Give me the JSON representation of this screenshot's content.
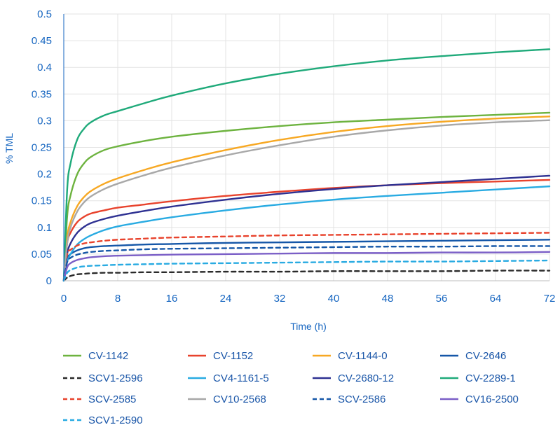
{
  "chart_data": {
    "type": "line",
    "title": "",
    "xlabel": "Time (h)",
    "ylabel": "% TML",
    "xlim": [
      0,
      72
    ],
    "ylim": [
      0,
      0.5
    ],
    "x_ticks": [
      "0",
      "8",
      "16",
      "24",
      "32",
      "40",
      "48",
      "56",
      "64",
      "72"
    ],
    "y_ticks": [
      "0",
      "0.05",
      "0.1",
      "0.15",
      "0.2",
      "0.25",
      "0.3",
      "0.35",
      "0.4",
      "0.45",
      "0.5"
    ],
    "grid": true,
    "legend_position": "bottom",
    "x": [
      0,
      0.5,
      1,
      2,
      3,
      4,
      6,
      8,
      12,
      16,
      24,
      32,
      40,
      48,
      56,
      64,
      72
    ],
    "series": [
      {
        "name": "CV-1142",
        "color": "#6db33f",
        "dash": false,
        "values": [
          0,
          0.12,
          0.16,
          0.2,
          0.22,
          0.232,
          0.245,
          0.252,
          0.262,
          0.27,
          0.281,
          0.29,
          0.297,
          0.302,
          0.307,
          0.311,
          0.315
        ]
      },
      {
        "name": "CV-1152",
        "color": "#e8432d",
        "dash": false,
        "values": [
          0,
          0.07,
          0.09,
          0.11,
          0.12,
          0.126,
          0.132,
          0.137,
          0.143,
          0.149,
          0.159,
          0.167,
          0.174,
          0.179,
          0.183,
          0.186,
          0.189
        ]
      },
      {
        "name": "CV-1144-0",
        "color": "#f7a823",
        "dash": false,
        "values": [
          0,
          0.08,
          0.11,
          0.14,
          0.157,
          0.168,
          0.182,
          0.192,
          0.208,
          0.222,
          0.245,
          0.264,
          0.279,
          0.29,
          0.298,
          0.304,
          0.308
        ]
      },
      {
        "name": "CV-2646",
        "color": "#1557a8",
        "dash": false,
        "values": [
          0,
          0.04,
          0.05,
          0.057,
          0.061,
          0.063,
          0.065,
          0.066,
          0.068,
          0.069,
          0.071,
          0.072,
          0.073,
          0.074,
          0.075,
          0.076,
          0.077
        ]
      },
      {
        "name": "SCV1-2596",
        "color": "#2a2a2a",
        "dash": true,
        "values": [
          0,
          0.006,
          0.009,
          0.012,
          0.013,
          0.014,
          0.015,
          0.015,
          0.016,
          0.016,
          0.017,
          0.017,
          0.018,
          0.018,
          0.018,
          0.019,
          0.019
        ]
      },
      {
        "name": "CV4-1161-5",
        "color": "#29abe2",
        "dash": false,
        "values": [
          0,
          0.035,
          0.05,
          0.068,
          0.078,
          0.085,
          0.095,
          0.102,
          0.111,
          0.119,
          0.132,
          0.143,
          0.152,
          0.159,
          0.165,
          0.171,
          0.177
        ]
      },
      {
        "name": "CV-2680-12",
        "color": "#2e3192",
        "dash": false,
        "values": [
          0,
          0.05,
          0.07,
          0.09,
          0.101,
          0.108,
          0.116,
          0.122,
          0.131,
          0.139,
          0.152,
          0.163,
          0.172,
          0.179,
          0.185,
          0.191,
          0.197
        ]
      },
      {
        "name": "CV-2289-1",
        "color": "#1faa7a",
        "dash": false,
        "values": [
          0,
          0.17,
          0.22,
          0.265,
          0.285,
          0.297,
          0.31,
          0.318,
          0.333,
          0.347,
          0.37,
          0.388,
          0.402,
          0.413,
          0.421,
          0.428,
          0.434
        ]
      },
      {
        "name": "SCV-2585",
        "color": "#e8432d",
        "dash": true,
        "values": [
          0,
          0.05,
          0.058,
          0.066,
          0.07,
          0.072,
          0.075,
          0.077,
          0.079,
          0.081,
          0.083,
          0.085,
          0.086,
          0.087,
          0.088,
          0.089,
          0.09
        ]
      },
      {
        "name": "CV10-2568",
        "color": "#a8a8a8",
        "dash": false,
        "values": [
          0,
          0.07,
          0.1,
          0.13,
          0.147,
          0.158,
          0.172,
          0.182,
          0.198,
          0.212,
          0.235,
          0.254,
          0.27,
          0.282,
          0.291,
          0.297,
          0.301
        ]
      },
      {
        "name": "SCV-2586",
        "color": "#1557a8",
        "dash": true,
        "values": [
          0,
          0.035,
          0.043,
          0.049,
          0.052,
          0.054,
          0.056,
          0.057,
          0.059,
          0.06,
          0.061,
          0.062,
          0.063,
          0.064,
          0.064,
          0.065,
          0.065
        ]
      },
      {
        "name": "CV16-2500",
        "color": "#7b5fc7",
        "dash": false,
        "values": [
          0,
          0.025,
          0.033,
          0.039,
          0.042,
          0.044,
          0.046,
          0.047,
          0.048,
          0.049,
          0.05,
          0.051,
          0.052,
          0.052,
          0.053,
          0.053,
          0.054
        ]
      },
      {
        "name": "SCV1-2590",
        "color": "#29abe2",
        "dash": true,
        "values": [
          0,
          0.015,
          0.02,
          0.025,
          0.027,
          0.028,
          0.029,
          0.03,
          0.031,
          0.032,
          0.033,
          0.034,
          0.035,
          0.036,
          0.036,
          0.037,
          0.038
        ]
      }
    ]
  }
}
